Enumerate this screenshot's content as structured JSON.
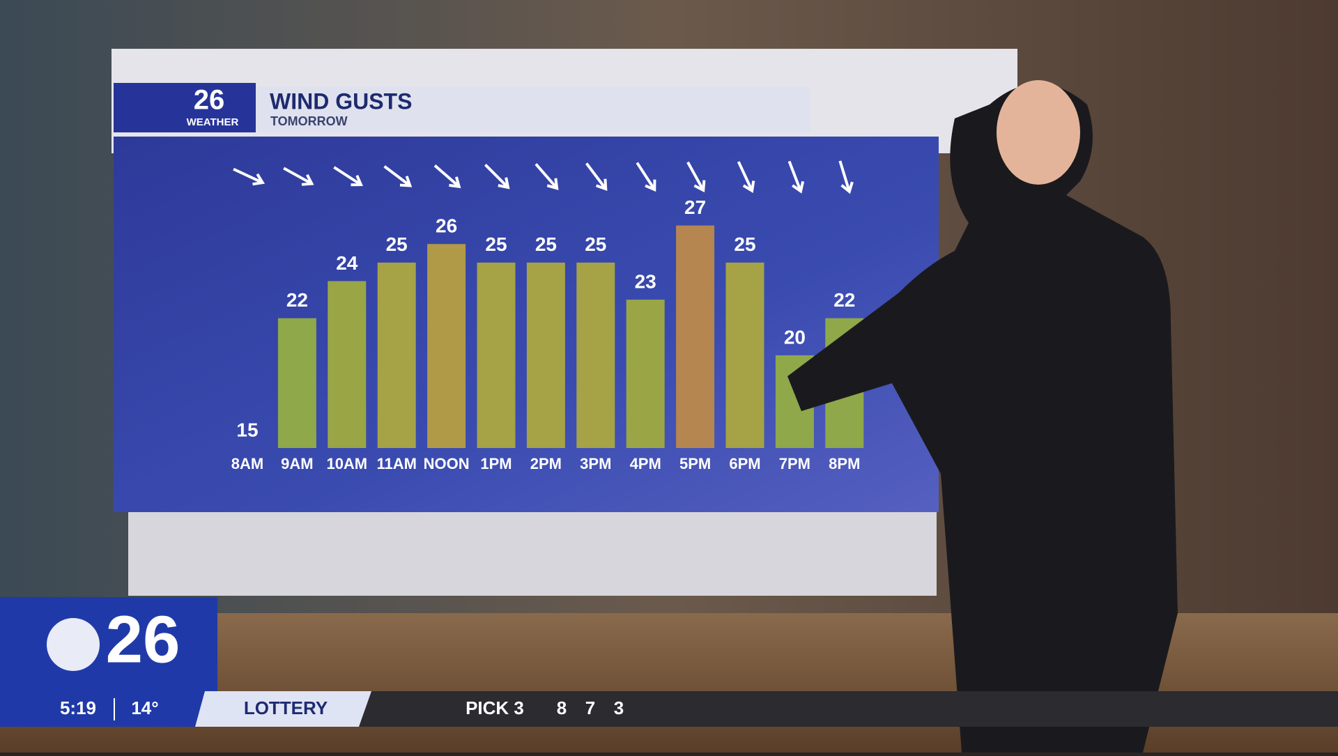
{
  "chart_data": {
    "type": "bar",
    "title": "WIND GUSTS",
    "subtitle": "TOMORROW",
    "categories": [
      "8AM",
      "9AM",
      "10AM",
      "11AM",
      "NOON",
      "1PM",
      "2PM",
      "3PM",
      "4PM",
      "5PM",
      "6PM",
      "7PM",
      "8PM"
    ],
    "values": [
      15,
      22,
      24,
      25,
      26,
      25,
      25,
      25,
      23,
      27,
      25,
      20,
      22
    ],
    "colors": [
      "#8fa84a",
      "#8fa84a",
      "#9aa646",
      "#a5a345",
      "#b09a48",
      "#a5a345",
      "#a5a345",
      "#a5a345",
      "#9aa646",
      "#b58650",
      "#a5a345",
      "#8fa84a",
      "#8fa84a"
    ],
    "ylim": [
      15,
      28
    ]
  },
  "logo": {
    "number": "26",
    "label": "WEATHER"
  },
  "ticker": {
    "channel": "26",
    "time": "5:19",
    "temperature": "14°",
    "section": "LOTTERY",
    "game": "PICK 3",
    "numbers": [
      8,
      7,
      3
    ]
  }
}
